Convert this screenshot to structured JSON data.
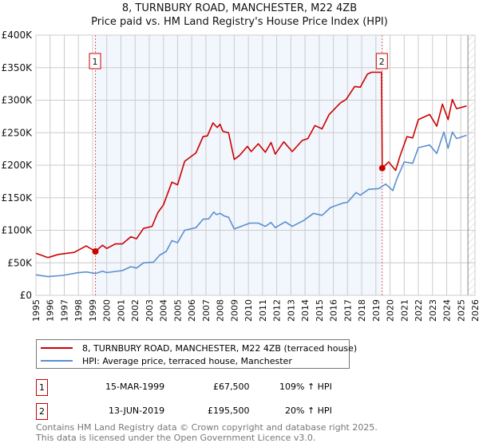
{
  "header": {
    "title": "8, TURNBURY ROAD, MANCHESTER, M22 4ZB",
    "subtitle": "Price paid vs. HM Land Registry's House Price Index (HPI)"
  },
  "chart_data": {
    "type": "line",
    "title": "8, TURNBURY ROAD, MANCHESTER, M22 4ZB",
    "subtitle": "Price paid vs. HM Land Registry's House Price Index (HPI)",
    "xlim": [
      1995,
      2026
    ],
    "ylim": [
      0,
      400000
    ],
    "x_ticks": [
      "1995",
      "1996",
      "1997",
      "1998",
      "1999",
      "2000",
      "2001",
      "2002",
      "2003",
      "2004",
      "2005",
      "2006",
      "2007",
      "2008",
      "2009",
      "2010",
      "2011",
      "2012",
      "2013",
      "2014",
      "2015",
      "2016",
      "2017",
      "2018",
      "2019",
      "2020",
      "2021",
      "2022",
      "2023",
      "2024",
      "2025",
      "2026"
    ],
    "y_ticks": [
      {
        "v": 0,
        "label": "£0"
      },
      {
        "v": 50000,
        "label": "£50K"
      },
      {
        "v": 100000,
        "label": "£100K"
      },
      {
        "v": 150000,
        "label": "£150K"
      },
      {
        "v": 200000,
        "label": "£200K"
      },
      {
        "v": 250000,
        "label": "£250K"
      },
      {
        "v": 300000,
        "label": "£300K"
      },
      {
        "v": 350000,
        "label": "£350K"
      },
      {
        "v": 400000,
        "label": "£400K"
      }
    ],
    "grid": true,
    "series": [
      {
        "name": "8, TURNBURY ROAD, MANCHESTER, M22 4ZB (terraced house)",
        "color": "#cc0000",
        "x": [
          1995.0,
          1995.85,
          1996.6,
          1997.7,
          1998.55,
          1999.2,
          1999.7,
          2000.0,
          2000.6,
          2001.1,
          2001.7,
          2002.1,
          2002.6,
          2003.2,
          2003.6,
          2004.0,
          2004.6,
          2005.0,
          2005.5,
          2006.3,
          2006.8,
          2007.1,
          2007.5,
          2007.8,
          2008.0,
          2008.2,
          2008.6,
          2009.0,
          2009.37,
          2009.93,
          2010.2,
          2010.7,
          2011.2,
          2011.6,
          2011.9,
          2012.5,
          2013.1,
          2013.8,
          2014.2,
          2014.7,
          2015.2,
          2015.7,
          2016.5,
          2016.9,
          2017.5,
          2017.9,
          2018.4,
          2018.7,
          2019.4,
          2019.45,
          2019.9,
          2020.4,
          2020.7,
          2021.2,
          2021.6,
          2022.0,
          2022.8,
          2023.3,
          2023.7,
          2024.1,
          2024.4,
          2024.7,
          2025.4
        ],
        "y": [
          64700,
          58000,
          63000,
          66000,
          76000,
          67500,
          77000,
          72000,
          79000,
          79000,
          90000,
          87000,
          103000,
          106000,
          127000,
          139000,
          174000,
          170000,
          206000,
          219000,
          244000,
          245000,
          265000,
          258000,
          263000,
          252000,
          250000,
          209000,
          215000,
          229000,
          221000,
          233000,
          220000,
          235000,
          217000,
          236000,
          221000,
          238000,
          241000,
          261000,
          256000,
          278000,
          296000,
          301000,
          321000,
          320000,
          340000,
          343000,
          343000,
          195500,
          205000,
          192000,
          214000,
          244000,
          242000,
          270000,
          278000,
          260000,
          294000,
          270000,
          301000,
          287000,
          291000
        ]
      },
      {
        "name": "HPI: Average price, terraced house, Manchester",
        "color": "#5b8fd0",
        "x": [
          1995.0,
          1995.85,
          1996.9,
          1998.0,
          1998.55,
          1999.2,
          1999.7,
          2000.0,
          2001.1,
          2001.7,
          2002.1,
          2002.6,
          2003.3,
          2003.75,
          2004.2,
          2004.6,
          2005.0,
          2005.5,
          2006.3,
          2006.8,
          2007.2,
          2007.55,
          2007.75,
          2008.0,
          2008.3,
          2008.6,
          2009.0,
          2009.37,
          2010.1,
          2010.7,
          2011.2,
          2011.6,
          2011.9,
          2012.6,
          2013.1,
          2013.9,
          2014.6,
          2015.2,
          2015.8,
          2016.7,
          2017.0,
          2017.6,
          2017.9,
          2018.5,
          2019.2,
          2019.7,
          2020.2,
          2020.5,
          2021.0,
          2021.6,
          2022.0,
          2022.8,
          2023.3,
          2023.8,
          2024.1,
          2024.4,
          2024.7,
          2025.4
        ],
        "y": [
          31500,
          28700,
          30700,
          34800,
          36000,
          33600,
          37000,
          35000,
          38000,
          44000,
          42000,
          50000,
          51000,
          62000,
          67500,
          84000,
          81000,
          100000,
          104000,
          117000,
          117500,
          128000,
          124000,
          126000,
          122000,
          120000,
          102000,
          105000,
          111000,
          111000,
          106000,
          112000,
          104000,
          113000,
          106000,
          115000,
          126000,
          123000,
          135000,
          142000,
          143000,
          158000,
          154000,
          163000,
          164000,
          171000,
          161000,
          180000,
          205000,
          203000,
          227000,
          231000,
          218000,
          251000,
          226000,
          251000,
          241000,
          246000
        ]
      }
    ],
    "annotations": [
      {
        "label": "1",
        "x": 1999.2,
        "y": 67500
      },
      {
        "label": "2",
        "x": 2019.45,
        "y": 195500
      }
    ],
    "shaded_range": [
      1999.2,
      2019.45
    ],
    "hatched_from": 2025.5
  },
  "legend": {
    "items": [
      {
        "label": "8, TURNBURY ROAD, MANCHESTER, M22 4ZB (terraced house)",
        "color": "#cc0000"
      },
      {
        "label": "HPI: Average price, terraced house, Manchester",
        "color": "#5b8fd0"
      }
    ]
  },
  "transactions": [
    {
      "num": "1",
      "date": "15-MAR-1999",
      "price": "£67,500",
      "hpi": "109% ↑ HPI"
    },
    {
      "num": "2",
      "date": "13-JUN-2019",
      "price": "£195,500",
      "hpi": "20% ↑ HPI"
    }
  ],
  "footer": {
    "line1": "Contains HM Land Registry data © Crown copyright and database right 2025.",
    "line2": "This data is licensed under the Open Government Licence v3.0."
  }
}
